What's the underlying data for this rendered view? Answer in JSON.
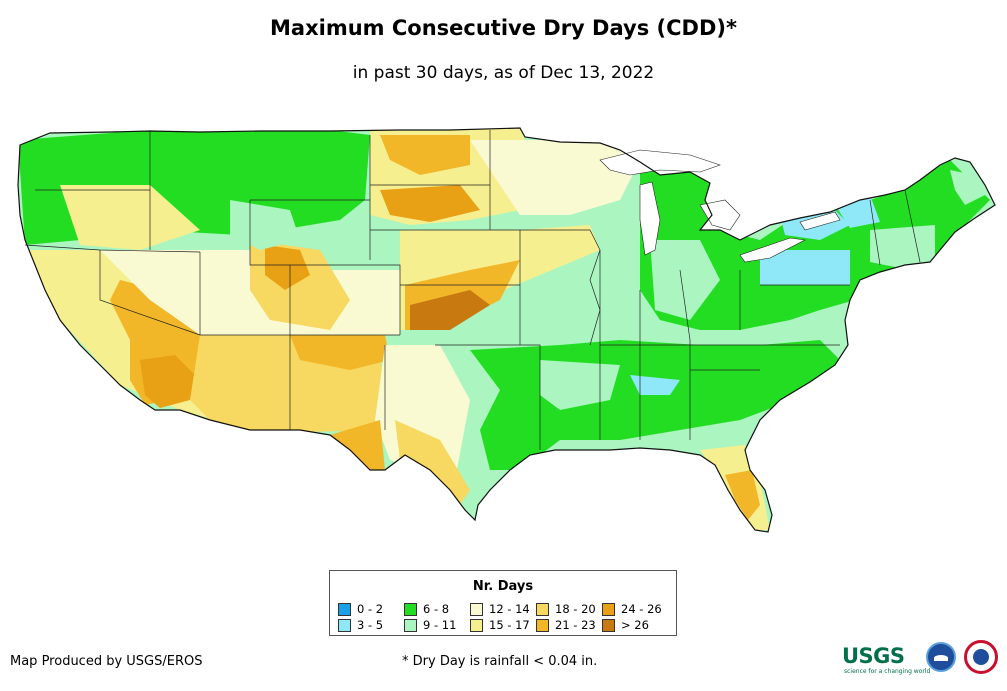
{
  "title": "Maximum Consecutive Dry Days (CDD)*",
  "subtitle": "in past 30 days, as of Dec 13, 2022",
  "legend": {
    "title": "Nr. Days",
    "items": [
      {
        "label": "0 - 2",
        "color": "#1aa0e8"
      },
      {
        "label": "3 - 5",
        "color": "#8ee8f8"
      },
      {
        "label": "6 - 8",
        "color": "#22dd22"
      },
      {
        "label": "9 - 11",
        "color": "#aaf5c0"
      },
      {
        "label": "12 - 14",
        "color": "#fafad2"
      },
      {
        "label": "15 - 17",
        "color": "#f6ef90"
      },
      {
        "label": "18 - 20",
        "color": "#f7d860"
      },
      {
        "label": "21 - 23",
        "color": "#f2b728"
      },
      {
        "label": "24 - 26",
        "color": "#e8a014"
      },
      {
        "label": "> 26",
        "color": "#c87a10"
      }
    ]
  },
  "credit": "Map Produced by USGS/EROS",
  "footnote": "* Dry Day is rainfall < 0.04 in.",
  "logos": {
    "usgs": "USGS",
    "usgs_tagline": "science for a changing world",
    "icons": [
      "noaa-logo-icon",
      "nws-logo-icon"
    ]
  }
}
